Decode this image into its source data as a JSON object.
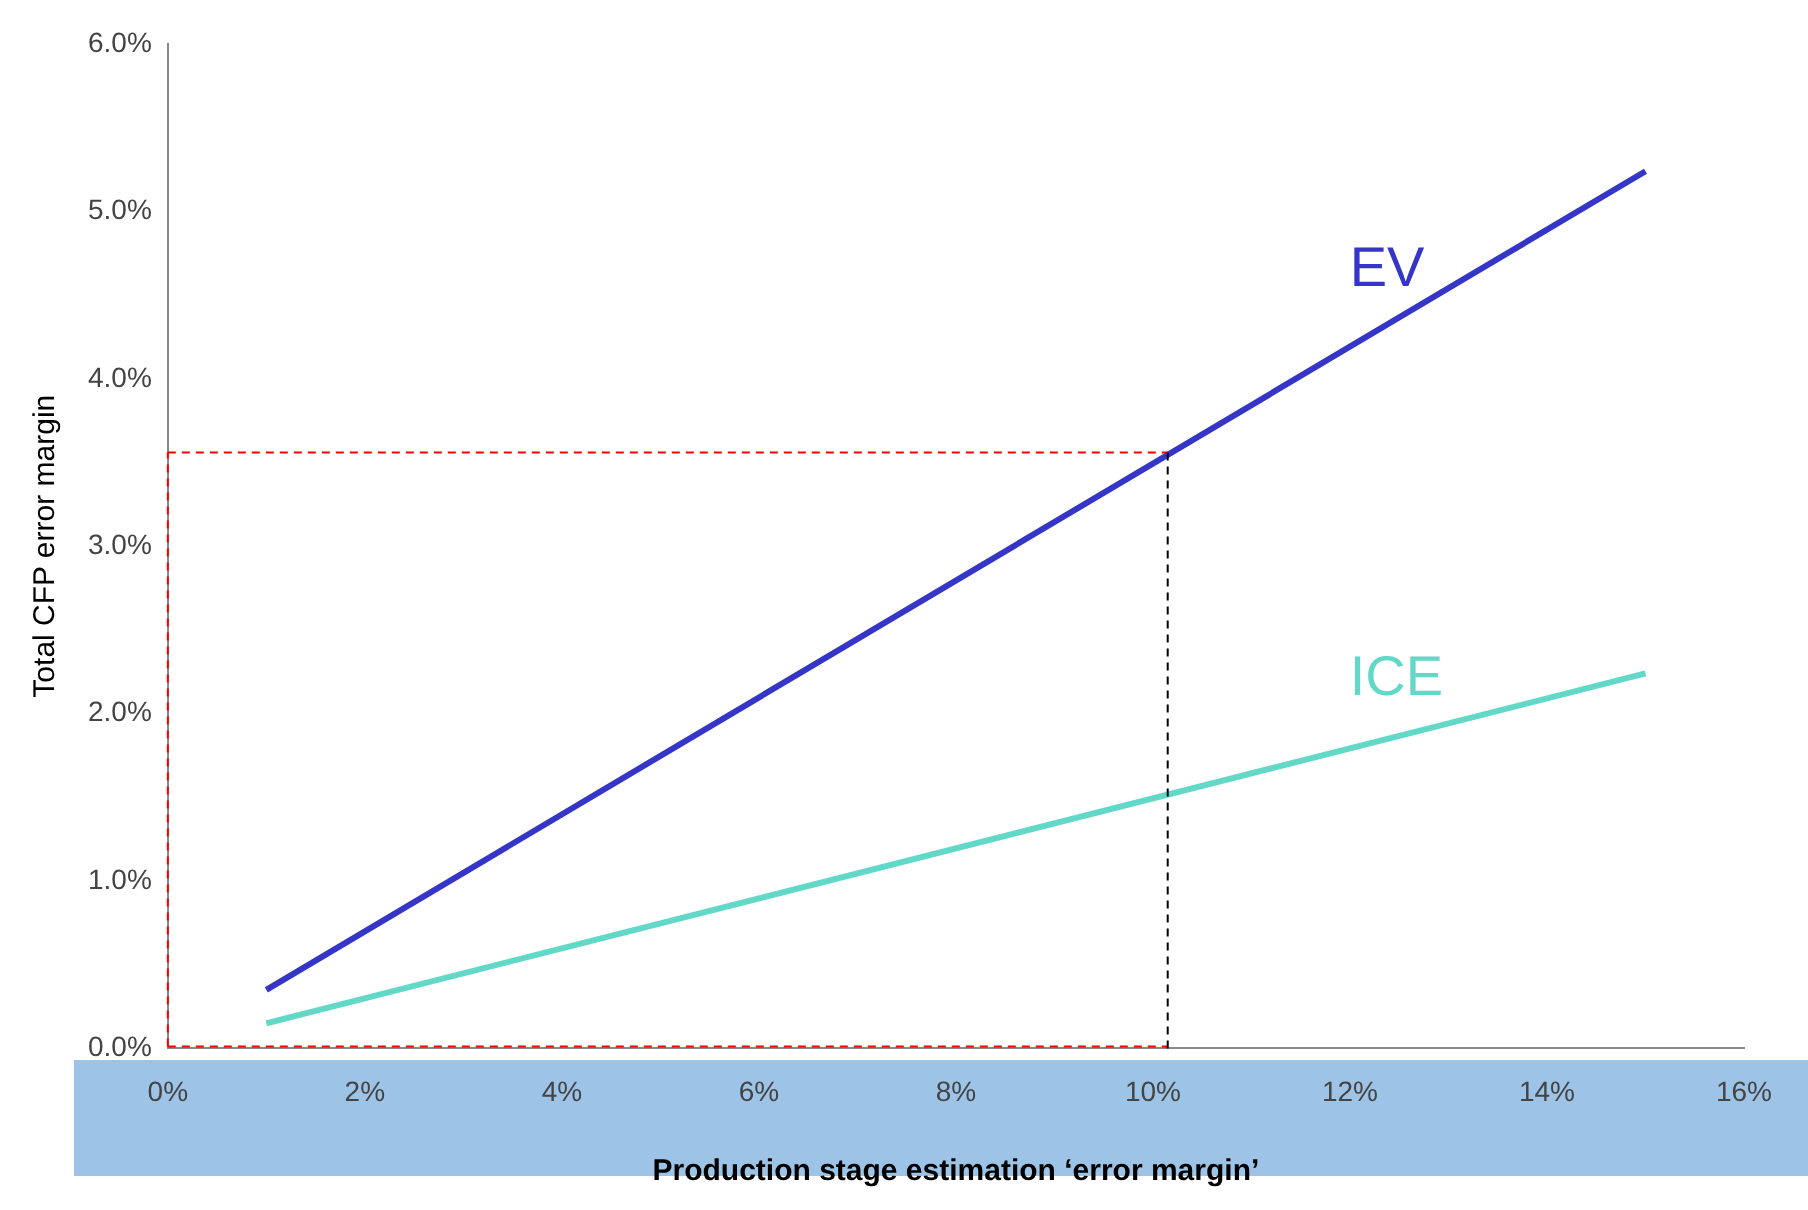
{
  "chart_data": {
    "type": "line",
    "xlabel": "Production stage estimation ‘error margin’",
    "ylabel": "Total CFP error margin",
    "x": [
      1,
      15
    ],
    "series": [
      {
        "name": "EV",
        "color": "#3535c8",
        "values": [
          0.35,
          5.24
        ]
      },
      {
        "name": "ICE",
        "color": "#62d8c8",
        "values": [
          0.15,
          2.24
        ]
      }
    ],
    "xlim": [
      0,
      16
    ],
    "xticks": [
      {
        "value": 0,
        "label": "0%"
      },
      {
        "value": 2,
        "label": "2%"
      },
      {
        "value": 4,
        "label": "4%"
      },
      {
        "value": 6,
        "label": "6%"
      },
      {
        "value": 8,
        "label": "8%"
      },
      {
        "value": 10,
        "label": "10%"
      },
      {
        "value": 12,
        "label": "12%"
      },
      {
        "value": 14,
        "label": "14%"
      },
      {
        "value": 16,
        "label": "16%"
      }
    ],
    "ylim": [
      0,
      6
    ],
    "yticks": [
      {
        "value": 0,
        "label": "0.0%"
      },
      {
        "value": 1,
        "label": "1.0%"
      },
      {
        "value": 2,
        "label": "2.0%"
      },
      {
        "value": 3,
        "label": "3.0%"
      },
      {
        "value": 4,
        "label": "4.0%"
      },
      {
        "value": 5,
        "label": "5.0%"
      },
      {
        "value": 6,
        "label": "6.0%"
      }
    ],
    "ref_lines": [
      {
        "axis": "y",
        "value": 3.56,
        "color": "#ff0000",
        "line_style": "dashed"
      },
      {
        "axis": "x",
        "value": 10.15,
        "color": "#000000",
        "line_style": "dashed"
      }
    ],
    "grid": false,
    "legend": false,
    "marker": "none",
    "line_style": "solid"
  }
}
